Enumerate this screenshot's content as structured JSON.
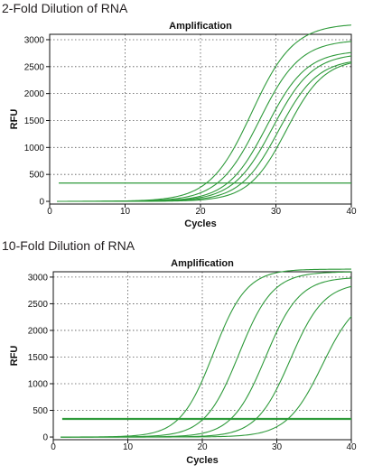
{
  "charts": [
    {
      "heading": "2-Fold Dilution of RNA",
      "chart_title": "Amplification",
      "xlabel": "Cycles",
      "ylabel": "RFU",
      "line_color": "#2e9a3a",
      "x_ticks": [
        "0",
        "10",
        "20",
        "30",
        "40"
      ],
      "y_ticks": [
        "0",
        "500",
        "1000",
        "1500",
        "2000",
        "2500",
        "3000"
      ]
    },
    {
      "heading": "10-Fold Dilution of RNA",
      "chart_title": "Amplification",
      "xlabel": "Cycles",
      "ylabel": "RFU",
      "line_color": "#2e9a3a",
      "x_ticks": [
        "0",
        "10",
        "20",
        "30",
        "40"
      ],
      "y_ticks": [
        "0",
        "500",
        "1000",
        "1500",
        "2000",
        "2500",
        "3000"
      ]
    }
  ],
  "chart_data": [
    {
      "type": "line",
      "title": "Amplification",
      "xlabel": "Cycles",
      "ylabel": "RFU",
      "xlim": [
        0,
        40
      ],
      "ylim": [
        -50,
        3100
      ],
      "grid": true,
      "threshold": 340,
      "series": [
        {
          "midpoint": 26.8,
          "plateau": 3300,
          "slope": 0.36
        },
        {
          "midpoint": 27.8,
          "plateau": 3000,
          "slope": 0.37
        },
        {
          "midpoint": 28.8,
          "plateau": 2800,
          "slope": 0.38
        },
        {
          "midpoint": 29.6,
          "plateau": 2750,
          "slope": 0.38
        },
        {
          "midpoint": 30.4,
          "plateau": 2650,
          "slope": 0.39
        },
        {
          "midpoint": 31.4,
          "plateau": 2650,
          "slope": 0.4
        }
      ]
    },
    {
      "type": "line",
      "title": "Amplification",
      "xlabel": "Cycles",
      "ylabel": "RFU",
      "xlim": [
        0,
        40
      ],
      "ylim": [
        -50,
        3100
      ],
      "grid": true,
      "threshold": 340,
      "series": [
        {
          "midpoint": 21.5,
          "plateau": 3150,
          "slope": 0.45
        },
        {
          "midpoint": 24.9,
          "plateau": 3100,
          "slope": 0.44
        },
        {
          "midpoint": 28.5,
          "plateau": 3000,
          "slope": 0.44
        },
        {
          "midpoint": 31.8,
          "plateau": 2900,
          "slope": 0.44
        },
        {
          "midpoint": 36.1,
          "plateau": 2700,
          "slope": 0.42
        }
      ]
    }
  ]
}
